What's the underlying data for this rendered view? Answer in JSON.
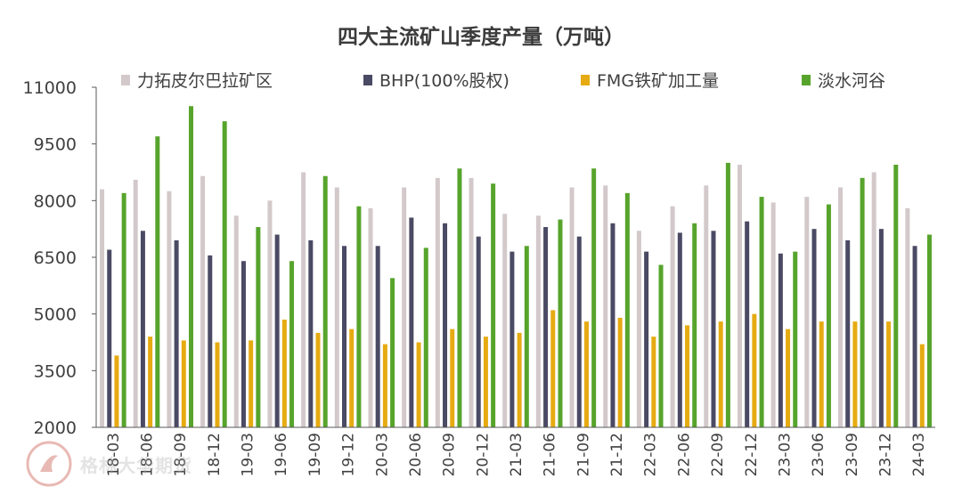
{
  "colors": {
    "series1": "#d3c9cb",
    "series2": "#4b4a64",
    "series3": "#e6ab12",
    "series4": "#57a42c",
    "axis": "#595959",
    "text": "#404040"
  },
  "watermark": {
    "text": "格林大华期货",
    "icon": "company-logo-icon"
  },
  "chart_data": {
    "type": "bar",
    "title": "四大主流矿山季度产量（万吨）",
    "xlabel": "",
    "ylabel": "",
    "ylim": [
      2000,
      11000
    ],
    "yticks": [
      "11000",
      "9500",
      "8000",
      "6500",
      "5000",
      "3500",
      "2000"
    ],
    "grid": false,
    "legend_position": "top",
    "categories": [
      "18-03",
      "18-06",
      "18-09",
      "18-12",
      "19-03",
      "19-06",
      "19-09",
      "19-12",
      "20-03",
      "20-06",
      "20-09",
      "20-12",
      "21-03",
      "21-06",
      "21-09",
      "21-12",
      "22-03",
      "22-06",
      "22-09",
      "22-12",
      "23-03",
      "23-06",
      "23-09",
      "23-12",
      "24-03"
    ],
    "series": [
      {
        "name": "力拓皮尔巴拉矿区",
        "values": [
          8300,
          8550,
          8250,
          8650,
          7600,
          8000,
          8750,
          8350,
          7800,
          8350,
          8600,
          8600,
          7650,
          7600,
          8350,
          8400,
          7200,
          7850,
          8400,
          8950,
          7950,
          8100,
          8350,
          8750,
          7800
        ]
      },
      {
        "name": "BHP(100%股权)",
        "values": [
          6700,
          7200,
          6950,
          6550,
          6400,
          7100,
          6950,
          6800,
          6800,
          7550,
          7400,
          7050,
          6650,
          7300,
          7050,
          7400,
          6650,
          7150,
          7200,
          7450,
          6600,
          7250,
          6950,
          7250,
          6800
        ]
      },
      {
        "name": "FMG铁矿加工量",
        "values": [
          3900,
          4400,
          4300,
          4250,
          4300,
          4850,
          4500,
          4600,
          4200,
          4250,
          4600,
          4400,
          4500,
          5100,
          4800,
          4900,
          4400,
          4700,
          4800,
          5000,
          4600,
          4800,
          4800,
          4800,
          4200
        ]
      },
      {
        "name": "淡水河谷",
        "values": [
          8200,
          9700,
          10500,
          10100,
          7300,
          6400,
          8650,
          7850,
          5950,
          6750,
          8850,
          8450,
          6800,
          7500,
          8850,
          8200,
          6300,
          7400,
          9000,
          8100,
          6650,
          7900,
          8600,
          8950,
          7100
        ]
      }
    ]
  }
}
